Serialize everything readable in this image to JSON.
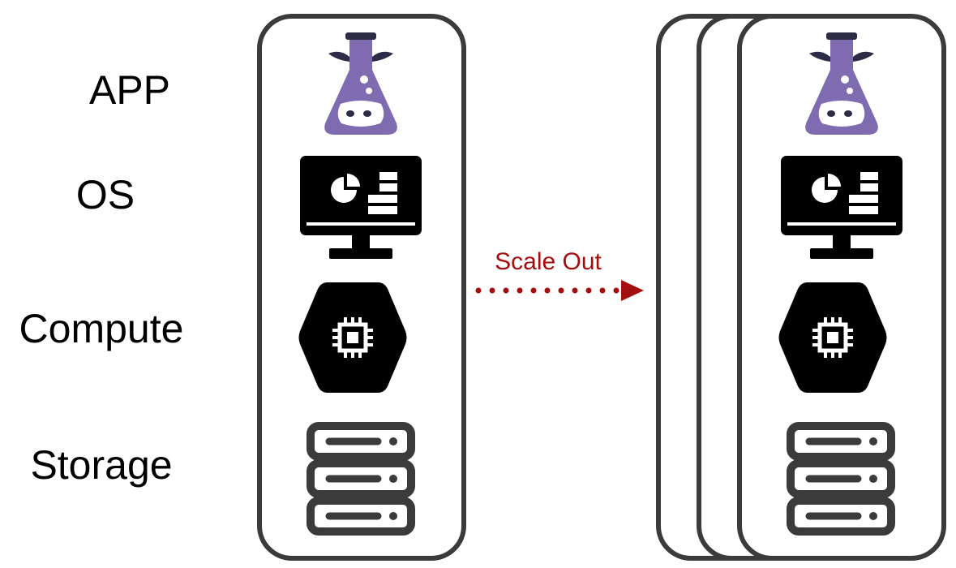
{
  "layers": {
    "app": "APP",
    "os": "OS",
    "compute": "Compute",
    "storage": "Storage"
  },
  "arrow": {
    "label": "Scale Out"
  },
  "colors": {
    "stroke": "#3b3b3b",
    "flask": "#7e6bb0",
    "flask_dark": "#2c2c46",
    "arrow": "#a40e0e",
    "icon": "#000000"
  },
  "icons": {
    "app": "flask-icon",
    "os": "monitor-dashboard-icon",
    "compute": "cpu-chip-hexagon-icon",
    "storage": "server-storage-icon"
  }
}
